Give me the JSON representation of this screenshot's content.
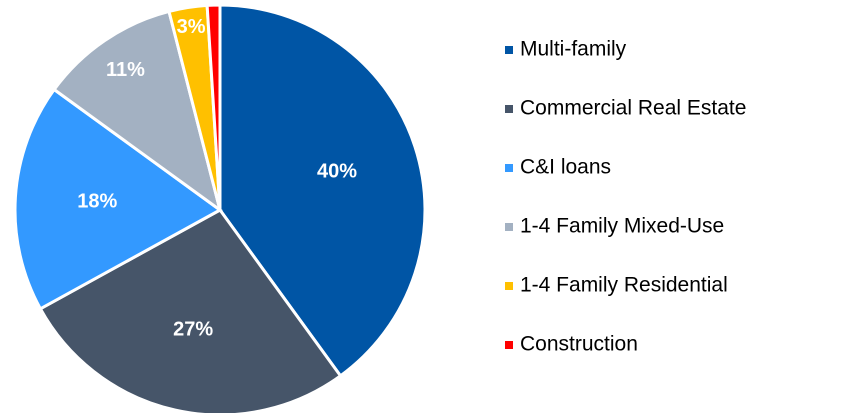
{
  "chart_data": {
    "type": "pie",
    "categories": [
      "Multi-family",
      "Commercial Real Estate",
      "C&I loans",
      "1-4 Family Mixed-Use",
      "1-4 Family Residential",
      "Construction"
    ],
    "values": [
      40,
      27,
      18,
      11,
      3,
      1
    ],
    "value_labels": [
      "40%",
      "27%",
      "18%",
      "11%",
      "3%",
      null
    ],
    "colors": [
      "#0055a5",
      "#465569",
      "#3399ff",
      "#a3b1c2",
      "#ffc000",
      "#ff0000"
    ],
    "legend": "right"
  }
}
